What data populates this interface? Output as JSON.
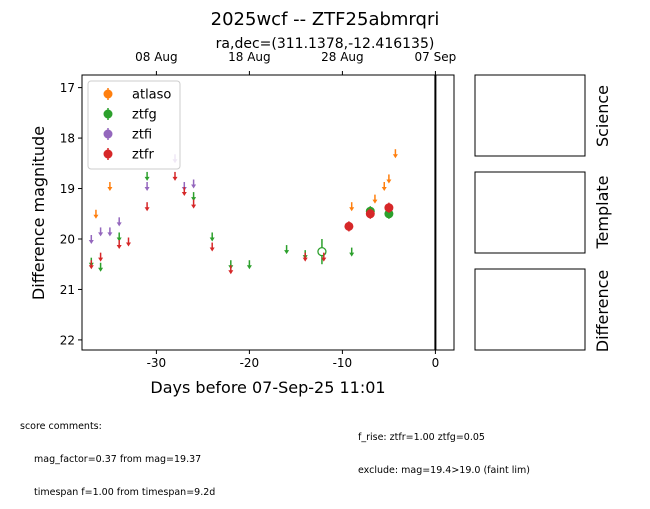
{
  "figure": {
    "title": "2025wcf -- ZTF25abmrqri",
    "subtitle": "ra,dec=(311.1378,-12.416135)"
  },
  "chart_data": {
    "type": "scatter",
    "xlabel": "Days before 07-Sep-25 11:01",
    "ylabel": "Difference magnitude",
    "xlim": [
      -38,
      2
    ],
    "ylim": [
      22.2,
      16.75
    ],
    "x_ticks": [
      -30,
      -20,
      -10,
      0
    ],
    "y_ticks": [
      17,
      18,
      19,
      20,
      21,
      22
    ],
    "top_axis_ticks": [
      {
        "x": -30,
        "label": "08 Aug"
      },
      {
        "x": -20,
        "label": "18 Aug"
      },
      {
        "x": -10,
        "label": "28 Aug"
      },
      {
        "x": 0,
        "label": "07 Sep"
      }
    ],
    "vertical_line_x": 0,
    "legend_position": "upper-left",
    "series": [
      {
        "name": "atlaso",
        "color": "#ff7f0e",
        "detections": [],
        "upper_limits": [
          {
            "x": -36.5,
            "y": 19.5
          },
          {
            "x": -35.0,
            "y": 18.95
          },
          {
            "x": -9.0,
            "y": 19.35
          },
          {
            "x": -6.5,
            "y": 19.2
          },
          {
            "x": -5.5,
            "y": 18.95
          },
          {
            "x": -5.0,
            "y": 18.8
          },
          {
            "x": -4.3,
            "y": 18.3
          }
        ]
      },
      {
        "name": "ztfg",
        "color": "#2ca02c",
        "detections": [
          {
            "x": -7.0,
            "y": 19.45,
            "err": 0.1
          },
          {
            "x": -5.0,
            "y": 19.5,
            "err": 0.1
          }
        ],
        "open_points": [
          {
            "x": -12.2,
            "y": 20.25,
            "err": 0.25
          }
        ],
        "upper_limits": [
          {
            "x": -37.0,
            "y": 20.45
          },
          {
            "x": -36.0,
            "y": 20.55
          },
          {
            "x": -34.0,
            "y": 19.95
          },
          {
            "x": -31.0,
            "y": 18.75
          },
          {
            "x": -26.0,
            "y": 19.15
          },
          {
            "x": -24.0,
            "y": 19.95
          },
          {
            "x": -22.0,
            "y": 20.5
          },
          {
            "x": -20.0,
            "y": 20.5
          },
          {
            "x": -16.0,
            "y": 20.2
          },
          {
            "x": -14.0,
            "y": 20.3
          },
          {
            "x": -9.0,
            "y": 20.25
          }
        ]
      },
      {
        "name": "ztfi",
        "color": "#9467bd",
        "detections": [],
        "upper_limits": [
          {
            "x": -37.0,
            "y": 20.0
          },
          {
            "x": -36.0,
            "y": 19.85
          },
          {
            "x": -35.0,
            "y": 19.85
          },
          {
            "x": -34.0,
            "y": 19.65
          },
          {
            "x": -31.0,
            "y": 18.95
          },
          {
            "x": -28.0,
            "y": 18.4
          },
          {
            "x": -27.0,
            "y": 18.95
          },
          {
            "x": -26.0,
            "y": 18.9
          }
        ]
      },
      {
        "name": "ztfr",
        "color": "#d62728",
        "detections": [
          {
            "x": -9.3,
            "y": 19.75,
            "err": 0.1
          },
          {
            "x": -7.0,
            "y": 19.5,
            "err": 0.1
          },
          {
            "x": -5.0,
            "y": 19.38,
            "err": 0.1
          }
        ],
        "upper_limits": [
          {
            "x": -37.0,
            "y": 20.5
          },
          {
            "x": -36.0,
            "y": 20.35
          },
          {
            "x": -34.0,
            "y": 20.1
          },
          {
            "x": -33.0,
            "y": 20.05
          },
          {
            "x": -31.0,
            "y": 19.35
          },
          {
            "x": -28.0,
            "y": 18.75
          },
          {
            "x": -27.0,
            "y": 19.05
          },
          {
            "x": -26.0,
            "y": 19.3
          },
          {
            "x": -24.0,
            "y": 20.15
          },
          {
            "x": -22.0,
            "y": 20.6
          },
          {
            "x": -14.0,
            "y": 20.35
          },
          {
            "x": -12.0,
            "y": 20.35
          }
        ]
      }
    ]
  },
  "side_panels": [
    "Science",
    "Template",
    "Difference"
  ],
  "comments": {
    "header": "score comments:",
    "left": [
      "mag_factor=0.37 from mag=19.37",
      "timespan f=1.00 from timespan=9.2d"
    ],
    "right": [
      "f_rise: ztfr=1.00 ztfg=0.05",
      "exclude: mag=19.4>19.0 (faint lim)"
    ]
  }
}
